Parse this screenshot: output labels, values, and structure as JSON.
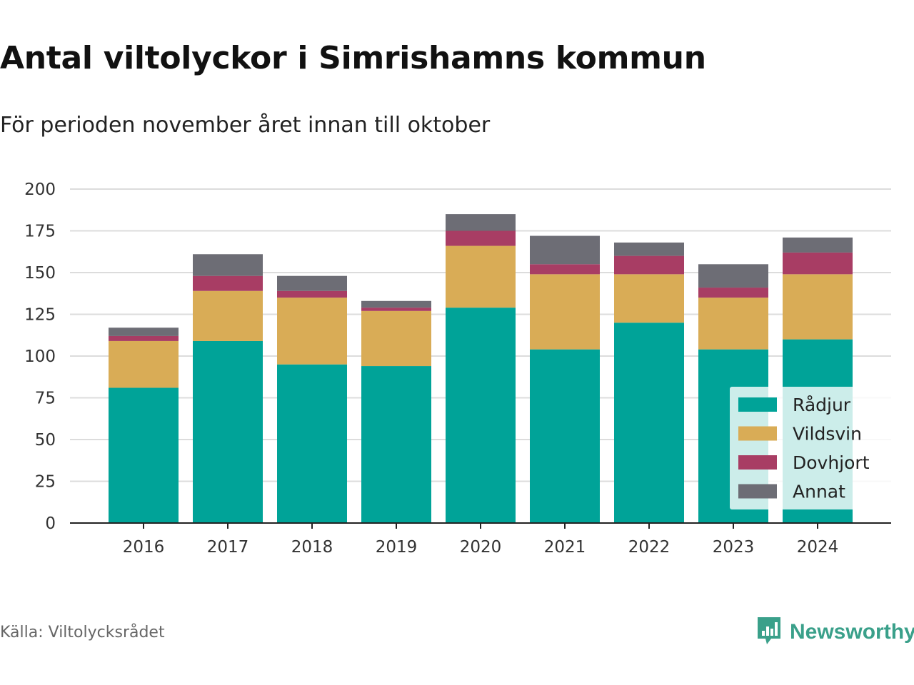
{
  "header": {
    "title": "Antal viltolyckor i Simrishamns kommun",
    "subtitle": "För perioden november året innan till oktober"
  },
  "footer": {
    "source": "Källa: Viltolycksrådet",
    "brand": "Newsworthy",
    "brand_icon": "bar-chart-speech-bubble-icon",
    "brand_color": "#3aa08a"
  },
  "chart_data": {
    "type": "bar",
    "stacked": true,
    "title": "Antal viltolyckor i Simrishamns kommun",
    "subtitle": "För perioden november året innan till oktober",
    "categories": [
      "2016",
      "2017",
      "2018",
      "2019",
      "2020",
      "2021",
      "2022",
      "2023",
      "2024"
    ],
    "series": [
      {
        "name": "Rådjur",
        "color": "#00a398",
        "values": [
          81,
          109,
          95,
          94,
          129,
          104,
          120,
          104,
          110
        ]
      },
      {
        "name": "Vildsvin",
        "color": "#d9ac56",
        "values": [
          28,
          30,
          40,
          33,
          37,
          45,
          29,
          31,
          39
        ]
      },
      {
        "name": "Dovhjort",
        "color": "#a83d64",
        "values": [
          3,
          9,
          4,
          2,
          9,
          6,
          11,
          6,
          13
        ]
      },
      {
        "name": "Annat",
        "color": "#6d6d75",
        "values": [
          5,
          13,
          9,
          4,
          10,
          17,
          8,
          14,
          9
        ]
      }
    ],
    "ylim": [
      0,
      200
    ],
    "yticks": [
      0,
      25,
      50,
      75,
      100,
      125,
      150,
      175,
      200
    ],
    "grid": true,
    "legend": "bottom-right"
  }
}
